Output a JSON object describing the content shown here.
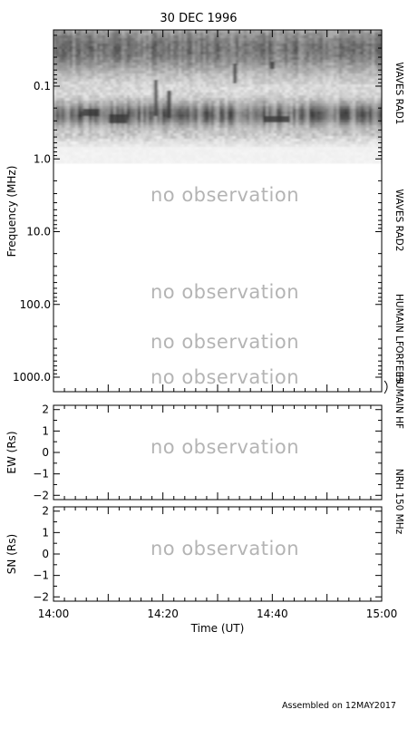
{
  "title": "30 DEC 1996",
  "footer": "Assembled on 12MAY2017",
  "colors": {
    "axis": "#000000",
    "no_observation_text": "#b4b4b4"
  },
  "chart_data": [
    {
      "type": "heatmap",
      "name": "dynamic-spectrum",
      "ylabel": "Frequency (MHz)",
      "yscale": "log",
      "yreversed": true,
      "ylim": [
        0.02,
        1400
      ],
      "yticks": [
        {
          "value": 0.1,
          "label": "0.1"
        },
        {
          "value": 1.0,
          "label": "1.0"
        },
        {
          "value": 10.0,
          "label": "10.0"
        },
        {
          "value": 100.0,
          "label": "100.0"
        },
        {
          "value": 1000.0,
          "label": "1000.0"
        }
      ],
      "xlim": [
        "14:00",
        "15:00"
      ],
      "instruments": [
        {
          "name": "WAVES RAD1",
          "freq_range": [
            0.02,
            1.0
          ],
          "status": "observed"
        },
        {
          "name": "WAVES RAD2",
          "freq_range": [
            1.0,
            14.0
          ],
          "status": "no observation"
        },
        {
          "name": "HUMAIN LF",
          "freq_range": [
            14.0,
            400.0
          ],
          "status": "no observation"
        },
        {
          "name": "ORFEES",
          "freq_range": [
            140.0,
            1000.0
          ],
          "status": "no observation"
        },
        {
          "name": "HUMAIN HF",
          "freq_range": [
            400.0,
            1400.0
          ],
          "status": "no observation"
        }
      ],
      "no_observation_texts": [
        "no observation",
        "no observation",
        "no observation",
        "no observation"
      ]
    },
    {
      "type": "scatter",
      "name": "nrh-ew",
      "ylabel": "EW (Rs)",
      "ylim": [
        -2.2,
        2.2
      ],
      "yticks": [
        {
          "value": 2,
          "label": "2"
        },
        {
          "value": 1,
          "label": "1"
        },
        {
          "value": 0,
          "label": "0"
        },
        {
          "value": -1,
          "label": "−1"
        },
        {
          "value": -2,
          "label": "−2"
        }
      ],
      "status": "no observation"
    },
    {
      "type": "scatter",
      "name": "nrh-sn",
      "ylabel": "SN (Rs)",
      "ylim": [
        -2.2,
        2.2
      ],
      "yticks": [
        {
          "value": 2,
          "label": "2"
        },
        {
          "value": 1,
          "label": "1"
        },
        {
          "value": 0,
          "label": "0"
        },
        {
          "value": -1,
          "label": "−1"
        },
        {
          "value": -2,
          "label": "−2"
        }
      ],
      "status": "no observation",
      "xlabel": "Time (UT)",
      "xticks": [
        {
          "value": "14:00",
          "label": "14:00"
        },
        {
          "value": "14:20",
          "label": "14:20"
        },
        {
          "value": "14:40",
          "label": "14:40"
        },
        {
          "value": "15:00",
          "label": "15:00"
        }
      ]
    }
  ],
  "nrh_label": "NRH 150 MHz"
}
